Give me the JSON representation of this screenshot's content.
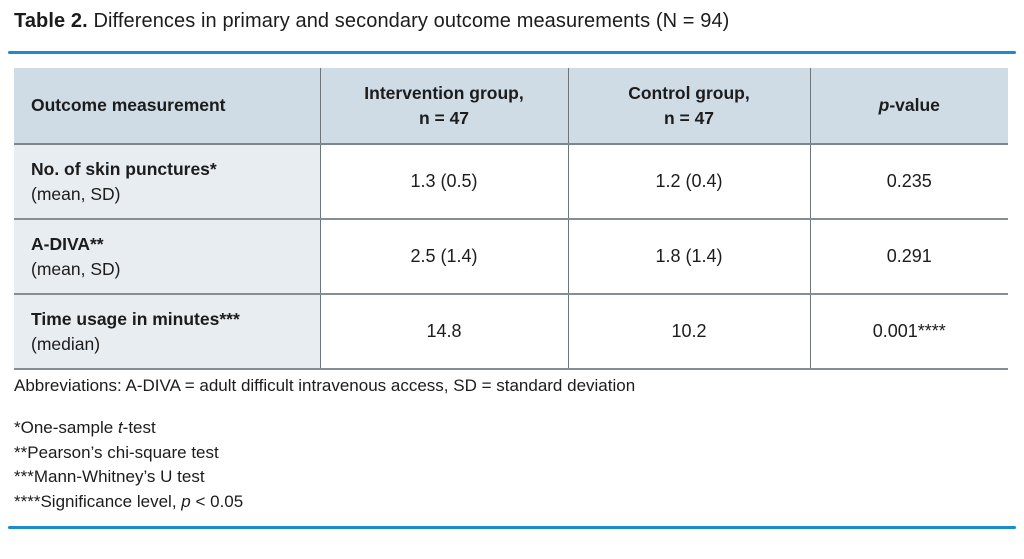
{
  "title": {
    "label": "Table 2.",
    "text": "Differences in primary and secondary outcome measurements (N = 94)"
  },
  "colors": {
    "accent_blue": "#1b8cce",
    "header_bg": "#cfdce5",
    "row_label_bg": "#e8edf2",
    "border_gray": "#7e868c",
    "text": "#1c1c1c"
  },
  "table": {
    "header": {
      "col1": "Outcome measurement",
      "col2_line1": "Intervention group,",
      "col2_line2": "n = 47",
      "col3_line1": "Control group,",
      "col3_line2": "n = 47",
      "col4_italic": "p",
      "col4_rest": "-value"
    },
    "rows": [
      {
        "name": "No. of skin punctures*",
        "sub": "(mean, SD)",
        "intervention": "1.3 (0.5)",
        "control": "1.2 (0.4)",
        "p": "0.235"
      },
      {
        "name": "A-DIVA**",
        "sub": "(mean, SD)",
        "intervention": "2.5 (1.4)",
        "control": "1.8 (1.4)",
        "p": "0.291"
      },
      {
        "name": "Time usage in minutes***",
        "sub": "(median)",
        "intervention": "14.8",
        "control": "10.2",
        "p": "0.001****"
      }
    ]
  },
  "footnotes": {
    "abbreviations": "Abbreviations: A-DIVA = adult difficult intravenous access, SD = standard deviation",
    "notes": [
      {
        "pre": "*One-sample ",
        "italic": "t",
        "post": "-test"
      },
      {
        "pre": "**Pearson’s chi-square test",
        "italic": "",
        "post": ""
      },
      {
        "pre": "***Mann-Whitney’s U test",
        "italic": "",
        "post": ""
      },
      {
        "pre": "****Significance level, ",
        "italic": "p",
        "post": " < 0.05"
      }
    ]
  }
}
